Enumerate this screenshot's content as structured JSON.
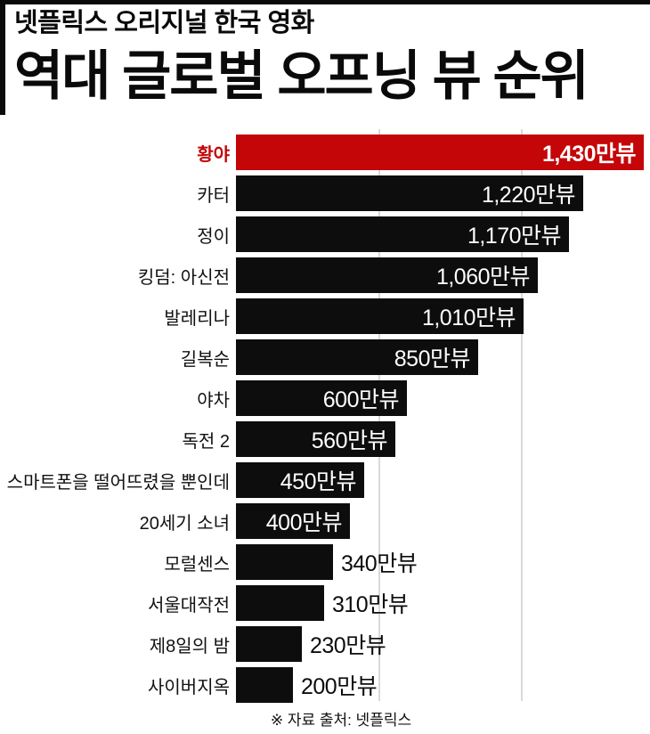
{
  "page": {
    "background": "#ffffff",
    "accent_black": "#0a0a0a"
  },
  "header": {
    "kicker": "넷플릭스 오리지널 한국 영화",
    "title": "역대 글로벌 오프닝 뷰 순위"
  },
  "chart_data": {
    "type": "bar",
    "orientation": "horizontal",
    "title": "역대 글로벌 오프닝 뷰 순위",
    "subtitle": "넷플릭스 오리지널 한국 영화",
    "unit": "만뷰",
    "categories": [
      "황야",
      "카터",
      "정이",
      "킹덤: 아신전",
      "발레리나",
      "길복순",
      "야차",
      "독전 2",
      "스마트폰을 떨어뜨렸을 뿐인데",
      "20세기 소녀",
      "모럴센스",
      "서울대작전",
      "제8일의 밤",
      "사이버지옥"
    ],
    "values": [
      1430,
      1220,
      1170,
      1060,
      1010,
      850,
      600,
      560,
      450,
      400,
      340,
      310,
      230,
      200
    ],
    "value_labels": [
      "1,430만뷰",
      "1,220만뷰",
      "1,170만뷰",
      "1,060만뷰",
      "1,010만뷰",
      "850만뷰",
      "600만뷰",
      "560만뷰",
      "450만뷰",
      "400만뷰",
      "340만뷰",
      "310만뷰",
      "230만뷰",
      "200만뷰"
    ],
    "xlim": [
      0,
      1500
    ],
    "gridline_values": [
      500,
      1000
    ],
    "grid": true,
    "legend": null,
    "highlight_index": 0,
    "highlight_color": "#c40608",
    "bar_color": "#0d0d0d",
    "gridline_color": "#d9d9d9",
    "value_label_inside_min_value": 400
  },
  "footer": {
    "source_note": "※ 자료 출처: 넷플릭스"
  }
}
